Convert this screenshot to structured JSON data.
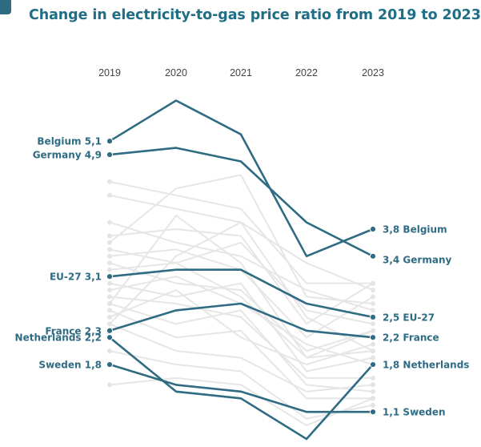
{
  "title": "Change in electricity-to-gas price ratio from 2019 to 2023",
  "colors": {
    "title": "#1f6e86",
    "highlight": "#2f6b82",
    "background_lines": "#e6e6e6"
  },
  "chart_data": {
    "type": "line",
    "title": "Change in electricity-to-gas price ratio from 2019 to 2023",
    "x": [
      "2019",
      "2020",
      "2021",
      "2022",
      "2023"
    ],
    "y_range": [
      0.7,
      5.8
    ],
    "grid": false,
    "legend": "none",
    "series": [
      {
        "name": "Belgium",
        "values": [
          5.1,
          5.7,
          5.2,
          3.4,
          3.8
        ],
        "start_label": "Belgium 5,1",
        "end_label": "3,8 Belgium"
      },
      {
        "name": "Germany",
        "values": [
          4.9,
          5.0,
          4.8,
          3.9,
          3.4
        ],
        "start_label": "Germany 4,9",
        "end_label": "3,4 Germany"
      },
      {
        "name": "EU-27",
        "values": [
          3.1,
          3.2,
          3.2,
          2.7,
          2.5
        ],
        "start_label": "EU-27 3,1",
        "end_label": "2,5 EU-27"
      },
      {
        "name": "France",
        "values": [
          2.3,
          2.6,
          2.7,
          2.3,
          2.2
        ],
        "start_label": "France 2,3",
        "end_label": "2,2 France"
      },
      {
        "name": "Netherlands",
        "values": [
          2.2,
          1.4,
          1.3,
          0.7,
          1.8
        ],
        "start_label": "Netherlands 2,2",
        "end_label": "1,8 Netherlands"
      },
      {
        "name": "Sweden",
        "values": [
          1.8,
          1.5,
          1.4,
          1.1,
          1.1
        ],
        "start_label": "Sweden 1,8",
        "end_label": "1,1 Sweden"
      }
    ],
    "background_series": [
      [
        4.5,
        4.3,
        4.1,
        3.0,
        3.0
      ],
      [
        4.3,
        4.1,
        3.9,
        3.3,
        2.9
      ],
      [
        3.9,
        3.6,
        3.4,
        2.9,
        2.6
      ],
      [
        3.7,
        3.8,
        3.7,
        2.4,
        3.0
      ],
      [
        3.5,
        3.3,
        3.6,
        2.6,
        2.4
      ],
      [
        3.4,
        3.5,
        3.2,
        2.2,
        2.8
      ],
      [
        3.3,
        3.0,
        2.9,
        2.0,
        2.3
      ],
      [
        3.2,
        3.3,
        2.8,
        1.9,
        2.0
      ],
      [
        3.0,
        2.8,
        3.0,
        1.7,
        1.9
      ],
      [
        2.9,
        3.1,
        2.7,
        2.1,
        1.8
      ],
      [
        2.8,
        2.7,
        2.5,
        1.6,
        1.6
      ],
      [
        2.7,
        2.4,
        2.6,
        1.5,
        1.4
      ],
      [
        2.6,
        2.2,
        2.3,
        1.3,
        1.3
      ],
      [
        2.5,
        2.9,
        2.2,
        1.8,
        2.1
      ],
      [
        2.4,
        2.0,
        1.9,
        1.4,
        1.5
      ],
      [
        2.0,
        1.8,
        1.7,
        1.0,
        1.2
      ],
      [
        1.5,
        1.6,
        1.5,
        0.9,
        1.3
      ],
      [
        3.6,
        4.4,
        4.6,
        2.8,
        2.7
      ],
      [
        2.4,
        3.4,
        3.9,
        2.5,
        2.0
      ],
      [
        2.7,
        4.0,
        3.3,
        1.9,
        2.3
      ]
    ]
  }
}
